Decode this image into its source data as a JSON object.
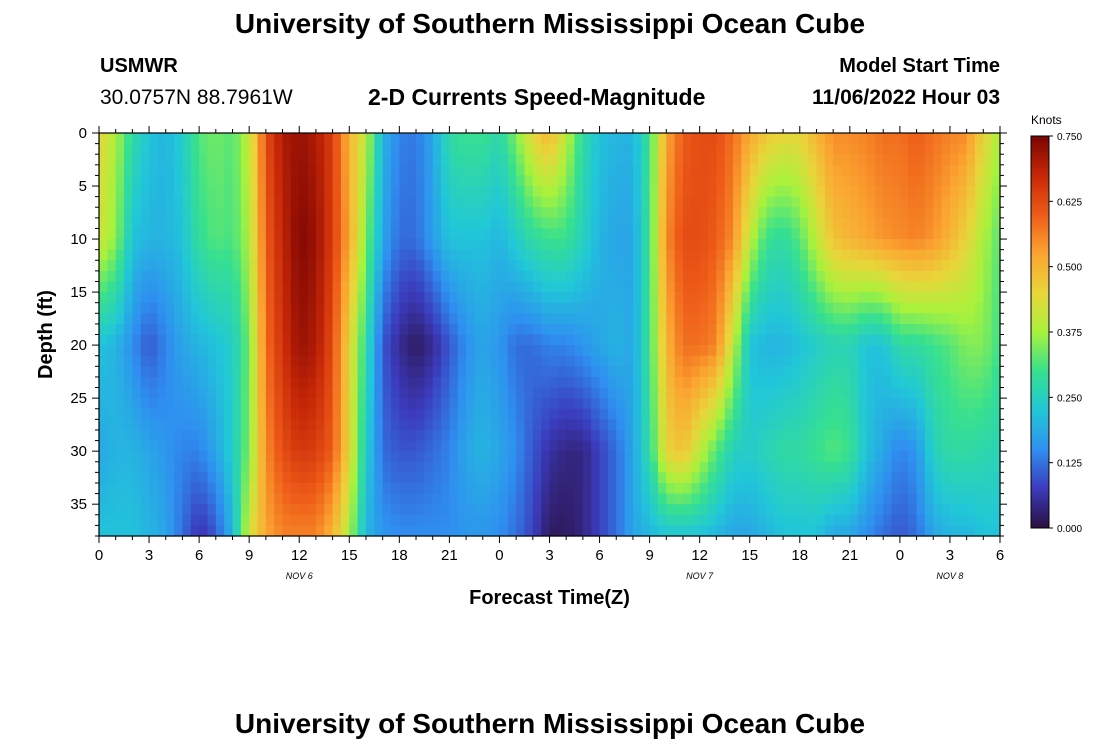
{
  "header": {
    "title": "University of Southern Mississippi Ocean Cube",
    "station": "USMWR",
    "coords": "30.0757N  88.7961W",
    "subtitle": "2-D Currents Speed-Magnitude",
    "model_start_label": "Model Start Time",
    "model_start_value": "11/06/2022 Hour 03"
  },
  "footer": {
    "title": "University of Southern Mississippi Ocean Cube"
  },
  "colors": {
    "colormap": [
      "#2b0f3e",
      "#3b3bbc",
      "#2f8ff0",
      "#21c7d8",
      "#37e08f",
      "#a8f23c",
      "#e9d53a",
      "#fba531",
      "#ee5b18",
      "#c62707",
      "#7a0403"
    ]
  },
  "chart_data": {
    "type": "heatmap",
    "title": "2-D Currents Speed-Magnitude",
    "xlabel": "Forecast Time(Z)",
    "ylabel": "Depth (ft)",
    "x_hours_range": [
      0,
      54
    ],
    "x_tick_step_hours": 3,
    "x_tick_labels": [
      "0",
      "3",
      "6",
      "9",
      "12",
      "15",
      "18",
      "21",
      "0",
      "3",
      "6",
      "9",
      "12",
      "15",
      "18",
      "21",
      "0",
      "3",
      "6"
    ],
    "date_labels": [
      {
        "text": "NOV 6",
        "hour": 12
      },
      {
        "text": "NOV 7",
        "hour": 36
      },
      {
        "text": "NOV 8",
        "hour": 51
      }
    ],
    "ylim": [
      0,
      38
    ],
    "y_ticks": [
      0,
      5,
      10,
      15,
      20,
      25,
      30,
      35
    ],
    "colorbar": {
      "label": "Knots",
      "range": [
        0,
        0.75
      ],
      "ticks": [
        "0.000",
        "0.125",
        "0.250",
        "0.375",
        "0.500",
        "0.625",
        "0.750"
      ]
    },
    "depths_ft": [
      0,
      10,
      20,
      30,
      38
    ],
    "hours": [
      0,
      1,
      2,
      3,
      4,
      5,
      6,
      7,
      8,
      9,
      10,
      11,
      12,
      13,
      14,
      15,
      16,
      17,
      18,
      19,
      20,
      21,
      22,
      23,
      24,
      25,
      26,
      27,
      28,
      29,
      30,
      31,
      32,
      33,
      34,
      35,
      36,
      37,
      38,
      39,
      40,
      41,
      42,
      43,
      44,
      45,
      46,
      47,
      48,
      49,
      50,
      51,
      52,
      53,
      54
    ],
    "speed_knots": [
      [
        0.45,
        0.38,
        0.28,
        0.22,
        0.2,
        0.24,
        0.32,
        0.34,
        0.32,
        0.4,
        0.62,
        0.7,
        0.72,
        0.7,
        0.64,
        0.5,
        0.4,
        0.2,
        0.14,
        0.13,
        0.18,
        0.28,
        0.3,
        0.3,
        0.27,
        0.35,
        0.45,
        0.5,
        0.4,
        0.28,
        0.22,
        0.2,
        0.2,
        0.3,
        0.52,
        0.6,
        0.62,
        0.62,
        0.58,
        0.52,
        0.47,
        0.45,
        0.45,
        0.5,
        0.55,
        0.55,
        0.56,
        0.58,
        0.58,
        0.6,
        0.58,
        0.56,
        0.55,
        0.45,
        0.38
      ],
      [
        0.42,
        0.36,
        0.22,
        0.2,
        0.2,
        0.22,
        0.29,
        0.32,
        0.31,
        0.38,
        0.6,
        0.68,
        0.74,
        0.72,
        0.64,
        0.52,
        0.35,
        0.18,
        0.12,
        0.12,
        0.17,
        0.22,
        0.22,
        0.22,
        0.2,
        0.24,
        0.28,
        0.3,
        0.3,
        0.25,
        0.2,
        0.18,
        0.18,
        0.3,
        0.55,
        0.62,
        0.62,
        0.6,
        0.55,
        0.4,
        0.3,
        0.28,
        0.32,
        0.4,
        0.48,
        0.5,
        0.52,
        0.54,
        0.55,
        0.56,
        0.54,
        0.5,
        0.45,
        0.38,
        0.32
      ],
      [
        0.22,
        0.2,
        0.15,
        0.1,
        0.14,
        0.18,
        0.2,
        0.22,
        0.24,
        0.34,
        0.58,
        0.66,
        0.72,
        0.7,
        0.62,
        0.45,
        0.28,
        0.1,
        0.05,
        0.02,
        0.05,
        0.1,
        0.15,
        0.18,
        0.16,
        0.12,
        0.12,
        0.14,
        0.14,
        0.16,
        0.18,
        0.2,
        0.18,
        0.3,
        0.5,
        0.58,
        0.58,
        0.56,
        0.4,
        0.22,
        0.2,
        0.2,
        0.22,
        0.24,
        0.26,
        0.26,
        0.22,
        0.22,
        0.28,
        0.28,
        0.3,
        0.32,
        0.35,
        0.35,
        0.3
      ],
      [
        0.18,
        0.2,
        0.2,
        0.18,
        0.16,
        0.14,
        0.14,
        0.18,
        0.24,
        0.35,
        0.55,
        0.62,
        0.65,
        0.64,
        0.6,
        0.45,
        0.24,
        0.12,
        0.1,
        0.1,
        0.12,
        0.14,
        0.18,
        0.2,
        0.18,
        0.15,
        0.1,
        0.06,
        0.04,
        0.04,
        0.08,
        0.12,
        0.18,
        0.28,
        0.45,
        0.48,
        0.4,
        0.32,
        0.25,
        0.24,
        0.26,
        0.28,
        0.28,
        0.3,
        0.32,
        0.3,
        0.22,
        0.18,
        0.14,
        0.16,
        0.25,
        0.28,
        0.28,
        0.27,
        0.26
      ],
      [
        0.22,
        0.22,
        0.22,
        0.2,
        0.18,
        0.12,
        0.06,
        0.1,
        0.2,
        0.42,
        0.52,
        0.56,
        0.56,
        0.56,
        0.5,
        0.38,
        0.2,
        0.16,
        0.15,
        0.15,
        0.15,
        0.15,
        0.16,
        0.16,
        0.15,
        0.12,
        0.08,
        0.02,
        0.02,
        0.04,
        0.08,
        0.12,
        0.18,
        0.2,
        0.22,
        0.22,
        0.22,
        0.2,
        0.18,
        0.18,
        0.2,
        0.22,
        0.22,
        0.22,
        0.18,
        0.18,
        0.15,
        0.12,
        0.1,
        0.12,
        0.18,
        0.2,
        0.2,
        0.22,
        0.22
      ]
    ]
  }
}
